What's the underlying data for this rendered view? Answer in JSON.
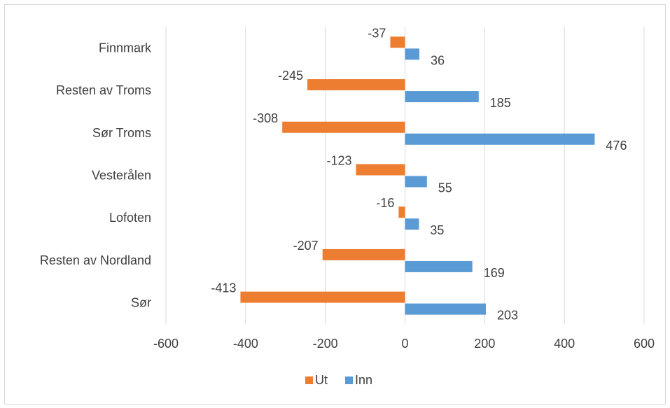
{
  "chart_data": {
    "type": "bar",
    "orientation": "horizontal",
    "categories": [
      "Finnmark",
      "Resten av Troms",
      "Sør Troms",
      "Vesterålen",
      "Lofoten",
      "Resten av Nordland",
      "Sør"
    ],
    "series": [
      {
        "name": "Ut",
        "color": "#ED7D31",
        "values": [
          -37,
          -245,
          -308,
          -123,
          -16,
          -207,
          -413
        ]
      },
      {
        "name": "Inn",
        "color": "#5B9BD5",
        "values": [
          36,
          185,
          476,
          55,
          35,
          169,
          203
        ]
      }
    ],
    "xlim": [
      -600,
      600
    ],
    "xticks": [
      "-600",
      "-400",
      "-200",
      "0",
      "200",
      "400",
      "600"
    ],
    "xtick_values": [
      -600,
      -400,
      -200,
      0,
      200,
      400,
      600
    ],
    "grid": true,
    "legend": "bottom",
    "data_labels": true
  }
}
